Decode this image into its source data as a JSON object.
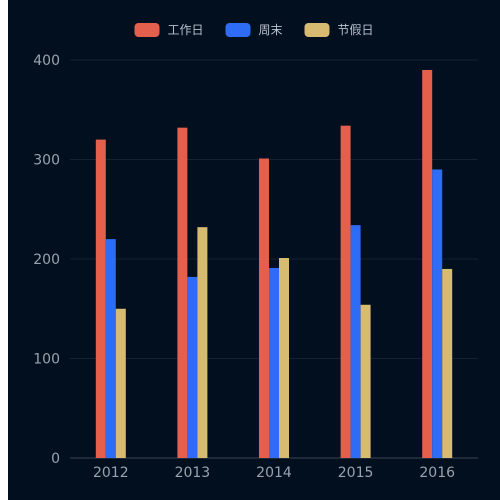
{
  "chart_data": {
    "type": "bar",
    "categories": [
      "2012",
      "2013",
      "2014",
      "2015",
      "2016"
    ],
    "series": [
      {
        "name": "工作日",
        "color": "#e4604d",
        "values": [
          320,
          332,
          301,
          334,
          390
        ]
      },
      {
        "name": "周末",
        "color": "#2f6cf6",
        "values": [
          220,
          182,
          191,
          234,
          290
        ]
      },
      {
        "name": "节假日",
        "color": "#d6bb71",
        "values": [
          150,
          232,
          201,
          154,
          190
        ]
      }
    ],
    "ylim": [
      0,
      400
    ],
    "yticks": [
      0,
      100,
      200,
      300,
      400
    ],
    "grid": true,
    "legend_position": "top-center",
    "background": "#010f1e"
  }
}
